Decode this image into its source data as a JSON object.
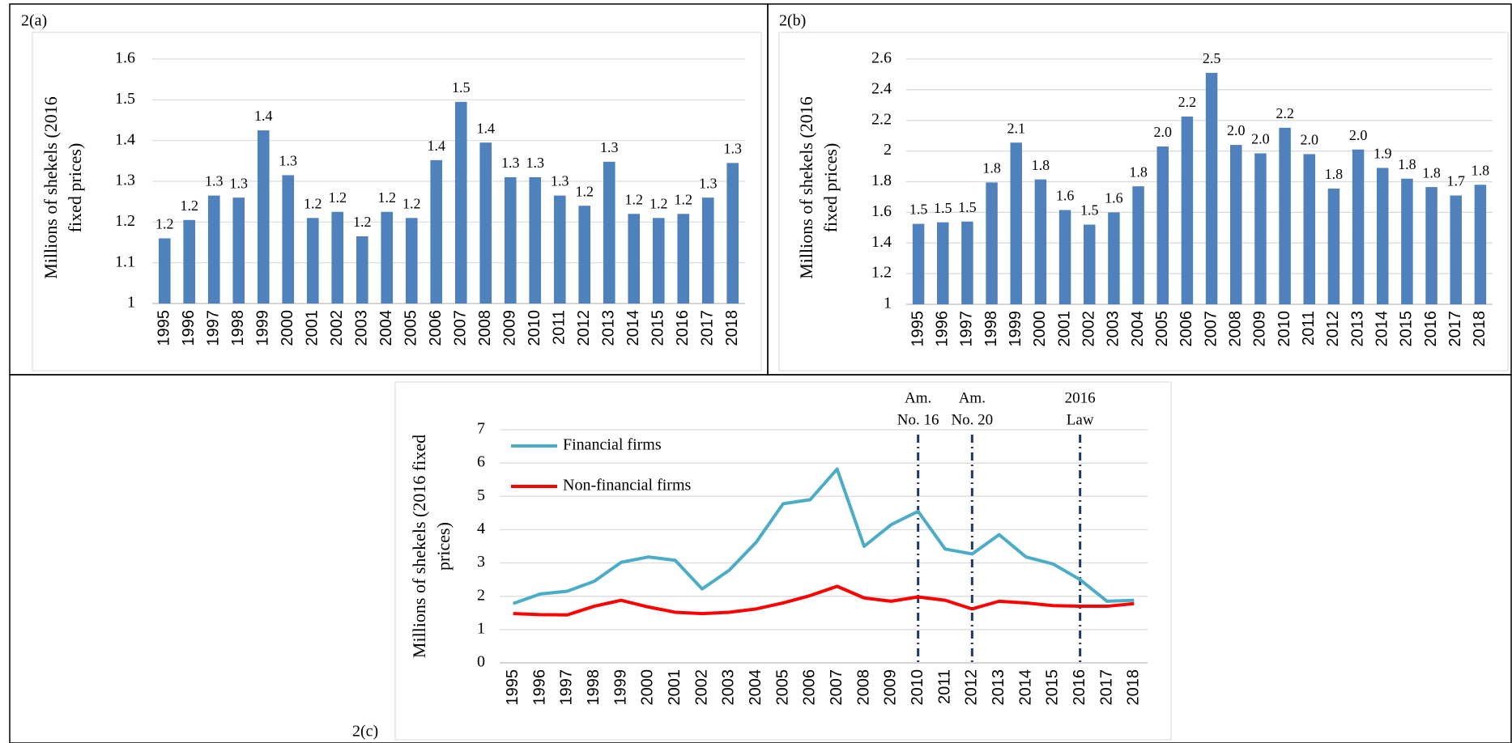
{
  "chart_data": [
    {
      "type": "bar",
      "label": "2(a)",
      "y_label": [
        "Millions of shekels (2016",
        "fixed prices)"
      ],
      "categories": [
        "1995",
        "1996",
        "1997",
        "1998",
        "1999",
        "2000",
        "2001",
        "2002",
        "2003",
        "2004",
        "2005",
        "2006",
        "2007",
        "2008",
        "2009",
        "2010",
        "2011",
        "2012",
        "2013",
        "2014",
        "2015",
        "2016",
        "2017",
        "2018"
      ],
      "values": [
        1.16,
        1.205,
        1.265,
        1.26,
        1.425,
        1.315,
        1.21,
        1.225,
        1.165,
        1.225,
        1.21,
        1.352,
        1.495,
        1.395,
        1.31,
        1.31,
        1.265,
        1.24,
        1.348,
        1.22,
        1.21,
        1.22,
        1.26,
        1.345
      ],
      "value_labels": [
        "1.2",
        "1.2",
        "1.3",
        "1.3",
        "1.4",
        "1.3",
        "1.2",
        "1.2",
        "1.2",
        "1.2",
        "1.2",
        "1.4",
        "1.5",
        "1.4",
        "1.3",
        "1.3",
        "1.3",
        "1.2",
        "1.3",
        "1.2",
        "1.2",
        "1.2",
        "1.3",
        "1.3"
      ],
      "color": "#4f81bd",
      "ylim": [
        1,
        1.6
      ],
      "yticks": [
        1,
        1.1,
        1.2,
        1.3,
        1.4,
        1.5,
        1.6
      ],
      "grid": true
    },
    {
      "type": "bar",
      "label": "2(b)",
      "y_label": [
        "Millions of shekels (2016",
        "fixed prices)"
      ],
      "categories": [
        "1995",
        "1996",
        "1997",
        "1998",
        "1999",
        "2000",
        "2001",
        "2002",
        "2003",
        "2004",
        "2005",
        "2006",
        "2007",
        "2008",
        "2009",
        "2010",
        "2011",
        "2012",
        "2013",
        "2014",
        "2015",
        "2016",
        "2017",
        "2018"
      ],
      "values": [
        1.525,
        1.535,
        1.54,
        1.795,
        2.055,
        1.815,
        1.615,
        1.52,
        1.6,
        1.77,
        2.03,
        2.225,
        2.51,
        2.04,
        1.985,
        2.152,
        1.98,
        1.755,
        2.01,
        1.89,
        1.82,
        1.765,
        1.71,
        1.78
      ],
      "value_labels": [
        "1.5",
        "1.5",
        "1.5",
        "1.8",
        "2.1",
        "1.8",
        "1.6",
        "1.5",
        "1.6",
        "1.8",
        "2.0",
        "2.2",
        "2.5",
        "2.0",
        "2.0",
        "2.2",
        "2.0",
        "1.8",
        "2.0",
        "1.9",
        "1.8",
        "1.8",
        "1.7",
        "1.8"
      ],
      "color": "#4f81bd",
      "ylim": [
        1,
        2.6
      ],
      "yticks": [
        1,
        1.2,
        1.4,
        1.6,
        1.8,
        2,
        2.2,
        2.4,
        2.6
      ],
      "grid": true
    },
    {
      "type": "line",
      "label": "2(c)",
      "y_label": [
        "Millions of shekels (2016 fixed",
        "prices)"
      ],
      "categories": [
        "1995",
        "1996",
        "1997",
        "1998",
        "1999",
        "2000",
        "2001",
        "2002",
        "2003",
        "2004",
        "2005",
        "2006",
        "2007",
        "2008",
        "2009",
        "2010",
        "2011",
        "2012",
        "2013",
        "2014",
        "2015",
        "2016",
        "2017",
        "2018"
      ],
      "series": [
        {
          "name": "Financial firms",
          "color": "#4bacc6",
          "values": [
            1.78,
            2.07,
            2.15,
            2.45,
            3.02,
            3.18,
            3.08,
            2.22,
            2.78,
            3.62,
            4.78,
            4.9,
            5.82,
            3.5,
            4.15,
            4.55,
            3.42,
            3.27,
            3.85,
            3.18,
            2.97,
            2.5,
            1.85,
            1.88
          ]
        },
        {
          "name": "Non-financial firms",
          "color": "#ff0000",
          "values": [
            1.48,
            1.45,
            1.44,
            1.7,
            1.88,
            1.68,
            1.52,
            1.48,
            1.52,
            1.62,
            1.8,
            2.02,
            2.3,
            1.95,
            1.85,
            1.98,
            1.88,
            1.62,
            1.85,
            1.8,
            1.72,
            1.7,
            1.7,
            1.78
          ]
        }
      ],
      "annotations": [
        {
          "x": "2010",
          "lines": [
            "Am.",
            "No. 16"
          ]
        },
        {
          "x": "2012",
          "lines": [
            "Am.",
            "No. 20"
          ]
        },
        {
          "x": "2016",
          "lines": [
            "2016",
            "Law"
          ]
        }
      ],
      "ylim": [
        0,
        7
      ],
      "yticks": [
        0,
        1,
        2,
        3,
        4,
        5,
        6,
        7
      ],
      "grid": true,
      "legend": "upper left"
    }
  ]
}
